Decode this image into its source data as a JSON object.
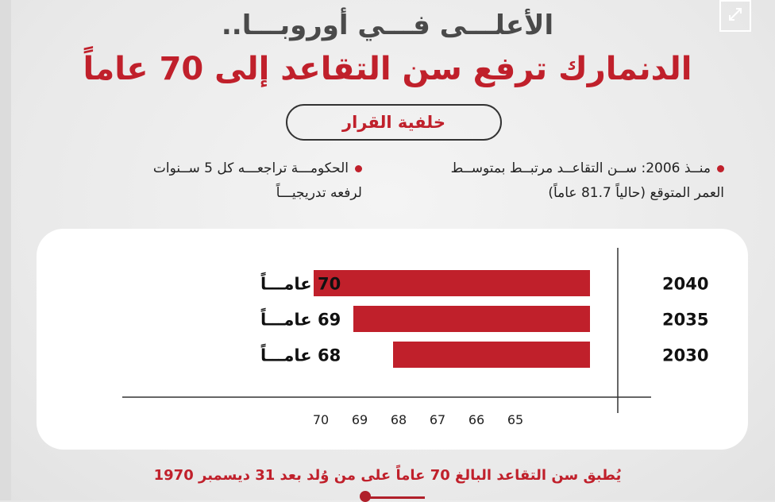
{
  "header": {
    "kicker": "الأعلـــى فـــي أوروبـــا..",
    "title": "الدنمارك ترفع سن التقاعد إلى 70 عاماً"
  },
  "section_pill": "خلفية القرار",
  "bullets": [
    {
      "line1": "منــذ 2006: ســن التقاعــد مرتبــط بمتوســط",
      "line2": "العمر المتوقع (حالياً 81.7 عاماً)"
    },
    {
      "line1": "الحكومـــة تراجعـــه كل 5 ســنوات",
      "line2": "لرفعه تدريجيـــاً"
    }
  ],
  "footer": "يُطبق سن التقاعد البالغ 70 عاماً على من وُلد بعد 31 ديسمبر 1970",
  "icons": {
    "expand": "expand-arrows-icon"
  },
  "colors": {
    "accent": "#c0202b",
    "bar": "#c0202b",
    "text": "#222222"
  },
  "chart_data": {
    "type": "bar",
    "orientation": "horizontal",
    "categories": [
      "2040",
      "2035",
      "2030"
    ],
    "values": [
      70,
      69,
      68
    ],
    "value_labels": [
      "70 عامـــاً",
      "69 عامـــاً",
      "68 عامـــاً"
    ],
    "xticks": [
      "70",
      "69",
      "68",
      "67",
      "66",
      "65"
    ],
    "x_reversed": true,
    "xlim": [
      64,
      70
    ],
    "grid": false
  }
}
